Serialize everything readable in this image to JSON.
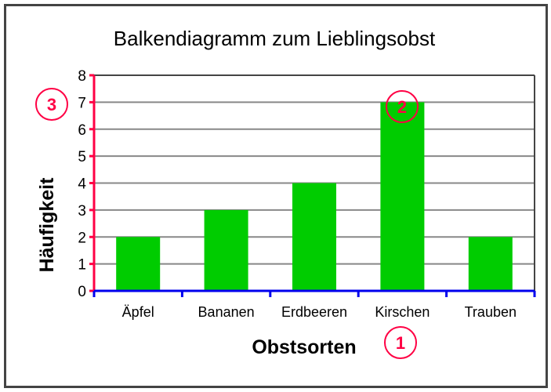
{
  "chart_data": {
    "type": "bar",
    "title": "Balkendiagramm zum Lieblingsobst",
    "xlabel": "Obstsorten",
    "ylabel": "Häufigkeit",
    "categories": [
      "Äpfel",
      "Bananen",
      "Erdbeeren",
      "Kirschen",
      "Trauben"
    ],
    "values": [
      2,
      3,
      4,
      7,
      2
    ],
    "ylim": [
      0,
      8
    ],
    "yticks": [
      0,
      1,
      2,
      3,
      4,
      5,
      6,
      7,
      8
    ],
    "grid": true,
    "legend": "none",
    "colors": {
      "bar": "#00cc00",
      "y_axis": "#ff0044",
      "x_axis": "#0000ee",
      "grid": "#888888",
      "annotation": "#ff0044"
    },
    "annotations": [
      {
        "label": "1",
        "target": "x-axis label"
      },
      {
        "label": "2",
        "target": "Kirschen bar top"
      },
      {
        "label": "3",
        "target": "y tick 7"
      }
    ]
  }
}
